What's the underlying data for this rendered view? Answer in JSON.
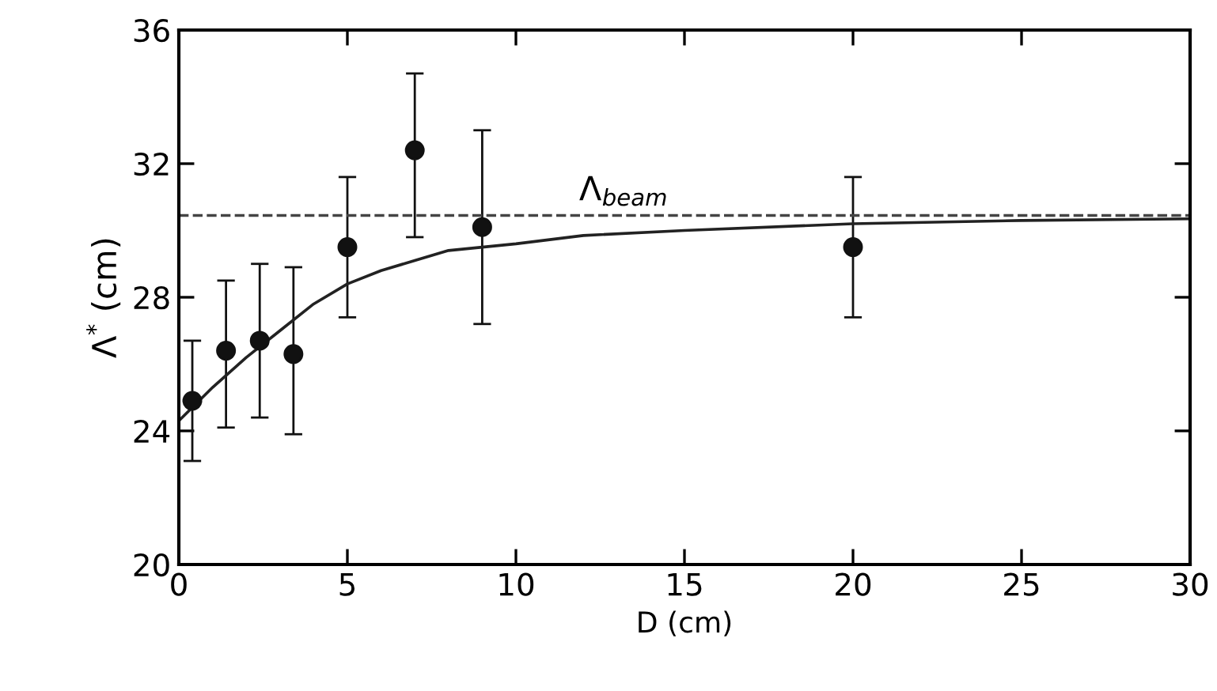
{
  "chart_data": {
    "type": "scatter",
    "xlabel": "D (cm)",
    "ylabel": "Λ$^{*}$ (cm)",
    "xlim": [
      0,
      30
    ],
    "ylim": [
      20,
      36
    ],
    "xticks": [
      0,
      5,
      10,
      15,
      20,
      25,
      30
    ],
    "yticks": [
      20,
      24,
      28,
      32,
      36
    ],
    "grid": false,
    "legend": false,
    "series": [
      {
        "color": "#111111",
        "marker": "circle",
        "x": [
          0.4,
          1.4,
          2.4,
          3.4,
          5,
          7,
          9,
          20
        ],
        "values": [
          24.9,
          26.4,
          26.7,
          26.3,
          29.5,
          32.4,
          30.1,
          29.5
        ],
        "errors": [
          [
            23.1,
            26.7
          ],
          [
            24.1,
            28.5
          ],
          [
            24.4,
            29.0
          ],
          [
            23.9,
            28.9
          ],
          [
            27.4,
            31.6
          ],
          [
            29.8,
            34.7
          ],
          [
            27.2,
            33.0
          ],
          [
            27.4,
            31.6
          ]
        ]
      },
      {
        "type": "line",
        "color": "#222222",
        "marker": "none",
        "line_style": "solid",
        "x": [
          0,
          1,
          2,
          3,
          4,
          5,
          6,
          7,
          8,
          10,
          12,
          15,
          20,
          25,
          30
        ],
        "values": [
          24.3,
          25.3,
          26.2,
          27.0,
          27.8,
          28.4,
          28.8,
          29.1,
          29.4,
          29.6,
          29.85,
          30.0,
          30.2,
          30.3,
          30.35
        ]
      }
    ],
    "ref_lines": [
      {
        "axis": "y",
        "value": 30.45,
        "label": "Λ$_{beam}$",
        "color": "#444444",
        "line_style": "dashed"
      }
    ]
  }
}
